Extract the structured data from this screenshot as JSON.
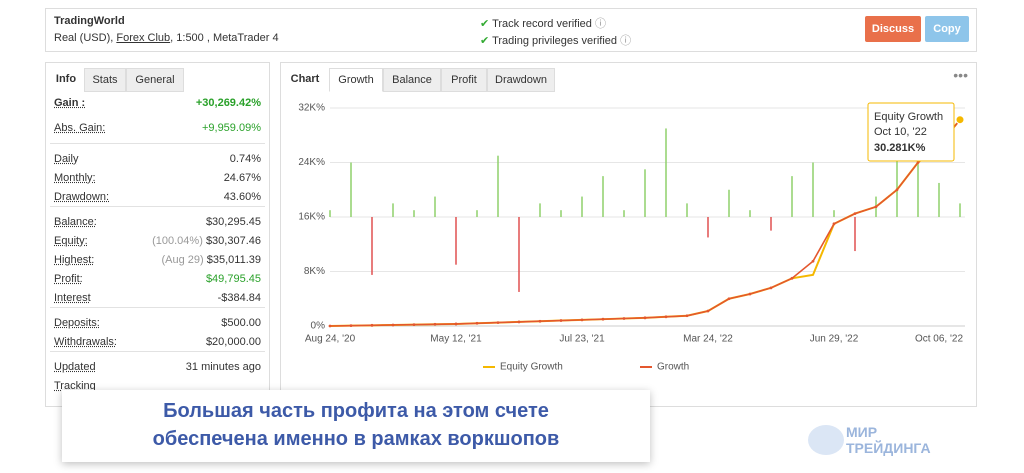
{
  "header": {
    "title": "TradingWorld",
    "account": "Real (USD),",
    "broker": "Forex Club",
    "details": ", 1:500 , MetaTrader 4",
    "verified": [
      "Track record verified",
      "Trading privileges verified"
    ],
    "buttons": [
      "Discuss",
      "Copy"
    ]
  },
  "tabs": [
    "Info",
    "Stats",
    "General"
  ],
  "stats": [
    [
      {
        "label": "Gain :",
        "value": "+30,269.42%",
        "positive": true,
        "bold": true
      },
      {
        "label": "Abs. Gain:",
        "value": "+9,959.09%",
        "positive": true
      }
    ],
    [
      {
        "label": "Daily",
        "value": "0.74%"
      },
      {
        "label": "Monthly:",
        "value": "24.67%"
      },
      {
        "label": "Drawdown:",
        "value": "43.60%"
      }
    ],
    [
      {
        "label": "Balance:",
        "value": "$30,295.45"
      },
      {
        "label": "Equity:",
        "note": "(100.04%)",
        "value": "$30,307.46"
      },
      {
        "label": "Highest:",
        "note": "(Aug 29)",
        "value": "$35,011.39"
      },
      {
        "label": "Profit:",
        "value": "$49,795.45",
        "positive": true
      },
      {
        "label": "Interest",
        "value": "-$384.84"
      }
    ],
    [
      {
        "label": "Deposits:",
        "value": "$500.00"
      },
      {
        "label": "Withdrawals:",
        "value": "$20,000.00"
      }
    ],
    [
      {
        "label": "Updated",
        "value": "31 minutes ago"
      },
      {
        "label": "Tracking"
      }
    ]
  ],
  "chart_tabs": [
    "Chart",
    "Growth",
    "Balance",
    "Profit",
    "Drawdown"
  ],
  "chart_data": {
    "type": "line",
    "categories": [
      "Aug 24, '20",
      null,
      null,
      null,
      null,
      null,
      "May 12, '21",
      null,
      null,
      null,
      null,
      null,
      "Jul 23, '21",
      null,
      null,
      null,
      null,
      null,
      "Mar 24, '22",
      null,
      null,
      null,
      null,
      null,
      "Jun 29, '22",
      null,
      null,
      null,
      null,
      "Oct 06, '22",
      null
    ],
    "series": [
      {
        "name": "Equity Growth",
        "color": "#f5b800",
        "values": [
          0,
          50,
          100,
          150,
          200,
          250,
          300,
          400,
          500,
          600,
          700,
          800,
          900,
          1000,
          1100,
          1200,
          1350,
          1500,
          2200,
          4000,
          4700,
          5600,
          7000,
          7500,
          15000,
          16500,
          17500,
          20000,
          24000,
          26500,
          30281
        ]
      },
      {
        "name": "Growth",
        "color": "#e4572e",
        "values": [
          0,
          50,
          100,
          150,
          200,
          250,
          300,
          400,
          500,
          600,
          700,
          800,
          900,
          1000,
          1100,
          1200,
          1350,
          1500,
          2200,
          4000,
          4700,
          5600,
          7000,
          9500,
          15000,
          16500,
          17500,
          20000,
          24000,
          26500,
          30281
        ]
      }
    ],
    "daily": {
      "axis": "y2",
      "up_color": "#8fd16b",
      "down_color": "#e05050",
      "values": [
        1,
        8,
        -8.5,
        2,
        1,
        3,
        -7,
        1,
        9,
        -11,
        2,
        1,
        3,
        6,
        1,
        7,
        13,
        2,
        -3,
        4,
        1,
        -2,
        6,
        8,
        1,
        -5,
        3,
        13,
        9,
        5,
        2
      ]
    },
    "ylim": [
      0,
      32000
    ],
    "yticks": [
      {
        "value": 0,
        "label": "0%"
      },
      {
        "value": 8000,
        "label": "8K%"
      },
      {
        "value": 16000,
        "label": "16K%"
      },
      {
        "value": 24000,
        "label": "24K%"
      },
      {
        "value": 32000,
        "label": "32K%"
      }
    ],
    "y2lim": [
      -16,
      16
    ],
    "grid": true,
    "tooltip": {
      "title": "Equity Growth",
      "date": "Oct 10, '22",
      "value": "30.281K%"
    }
  },
  "banner": [
    "Большая часть профита на этом счете",
    "обеспечена именно в рамках воркшопов"
  ],
  "logo": [
    "МИР",
    "ТРЕЙДИНГА"
  ]
}
